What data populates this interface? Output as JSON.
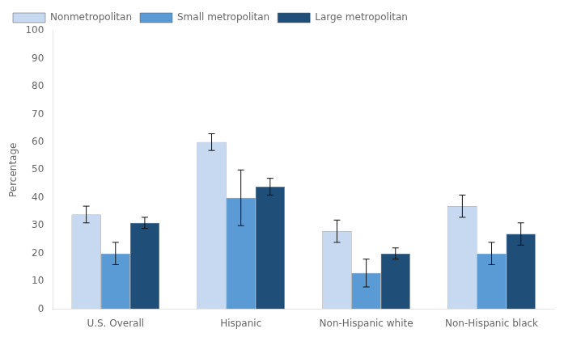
{
  "chart_data": {
    "type": "bar",
    "categories": [
      "U.S. Overall",
      "Hispanic",
      "Non-Hispanic white",
      "Non-Hispanic black"
    ],
    "series": [
      {
        "name": "Nonmetropolitan",
        "color": "#c6d9f0",
        "values": [
          34,
          60,
          28,
          37
        ],
        "errors": [
          3,
          3,
          4,
          4
        ]
      },
      {
        "name": "Small metropolitan",
        "color": "#5b9bd5",
        "values": [
          20,
          40,
          13,
          20
        ],
        "errors": [
          4,
          10,
          5,
          4
        ]
      },
      {
        "name": "Large metropolitan",
        "color": "#1f4e79",
        "values": [
          31,
          44,
          20,
          27
        ],
        "errors": [
          2,
          3,
          2,
          4
        ]
      }
    ],
    "ylabel": "Percentage",
    "ylim": [
      0,
      100
    ],
    "yticks": [
      0,
      10,
      20,
      30,
      40,
      50,
      60,
      70,
      80,
      90,
      100
    ],
    "grid": false,
    "legend": "upper left"
  }
}
